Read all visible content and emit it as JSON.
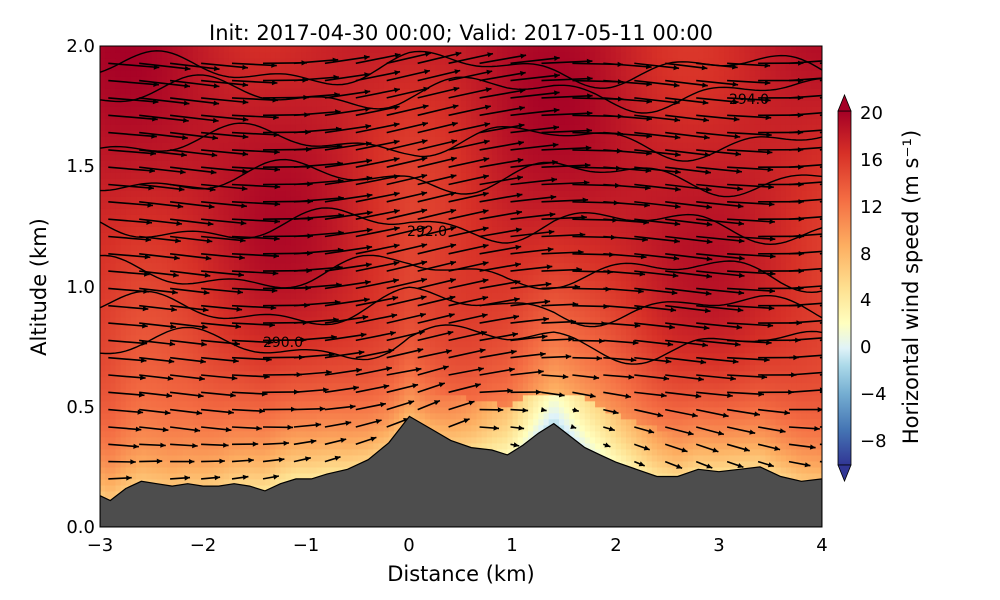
{
  "chart_data": {
    "type": "contour",
    "title": "Init: 2017-04-30 00:00; Valid: 2017-05-11 00:00",
    "xlabel": "Distance (km)",
    "ylabel": "Altitude (km)",
    "xlim": [
      -3,
      4
    ],
    "ylim": [
      0.0,
      2.0
    ],
    "x_ticks": [
      "−3",
      "−2",
      "−1",
      "0",
      "1",
      "2",
      "3",
      "4"
    ],
    "y_ticks": [
      "0.0",
      "0.5",
      "1.0",
      "1.5",
      "2.0"
    ],
    "colorbar": {
      "label": "Horizontal wind speed (m s⁻¹)",
      "min": -10,
      "max": 20,
      "ticks": [
        "20",
        "16",
        "12",
        "8",
        "4",
        "0",
        "−4",
        "−8"
      ],
      "colormap": "RdYlBu_r"
    },
    "contour_labels": [
      "294.0",
      "292.0",
      "290.0"
    ],
    "terrain": {
      "x": [
        -3.0,
        -2.9,
        -2.75,
        -2.6,
        -2.45,
        -2.3,
        -2.15,
        -2.0,
        -1.85,
        -1.7,
        -1.55,
        -1.4,
        -1.25,
        -1.1,
        -0.95,
        -0.8,
        -0.6,
        -0.4,
        -0.2,
        0.0,
        0.2,
        0.4,
        0.6,
        0.8,
        0.95,
        1.1,
        1.25,
        1.4,
        1.55,
        1.7,
        1.85,
        2.0,
        2.2,
        2.4,
        2.6,
        2.8,
        3.0,
        3.2,
        3.4,
        3.6,
        3.8,
        4.0
      ],
      "altitude": [
        0.13,
        0.11,
        0.16,
        0.19,
        0.18,
        0.17,
        0.18,
        0.17,
        0.17,
        0.18,
        0.17,
        0.15,
        0.18,
        0.2,
        0.2,
        0.22,
        0.24,
        0.28,
        0.35,
        0.46,
        0.41,
        0.36,
        0.33,
        0.32,
        0.3,
        0.34,
        0.39,
        0.43,
        0.38,
        0.33,
        0.3,
        0.27,
        0.24,
        0.21,
        0.21,
        0.24,
        0.23,
        0.24,
        0.25,
        0.21,
        0.19,
        0.2
      ],
      "color": "#4d4d4d"
    },
    "isentropes_km": [
      0.75,
      0.9,
      1.05,
      1.25,
      1.45,
      1.6,
      1.8,
      1.9
    ],
    "wind_field": {
      "surface_speed": 6,
      "upper_speed": 18,
      "calm_zone_x": [
        0.2,
        2.6
      ],
      "calm_zone_alt": [
        0.25,
        0.4
      ]
    }
  }
}
